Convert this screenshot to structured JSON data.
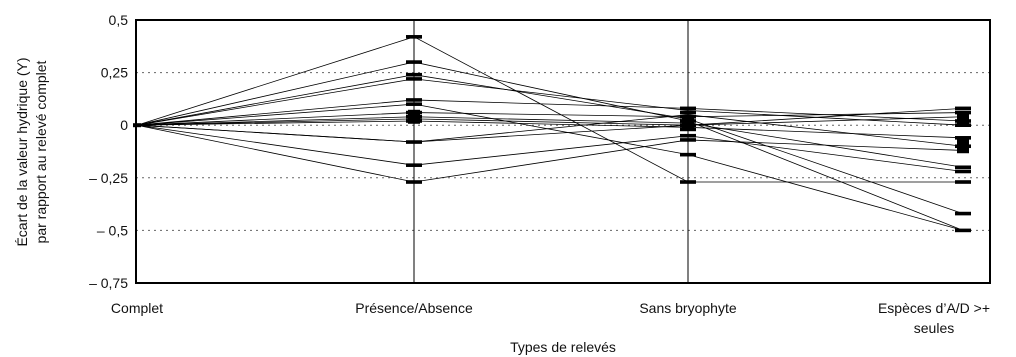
{
  "chart_data": {
    "type": "line",
    "xlabel": "Types de relevés",
    "ylabel_lines": [
      "Écart de la valeur hydrique (Y)",
      "par rapport au relevé complet"
    ],
    "categories": [
      {
        "lines": [
          "Complet"
        ]
      },
      {
        "lines": [
          "Présence/Absence"
        ]
      },
      {
        "lines": [
          "Sans bryophyte"
        ]
      },
      {
        "lines": [
          "Espèces d’A/D >+",
          "seules"
        ]
      }
    ],
    "ylim": [
      -0.75,
      0.5
    ],
    "y_ticks": [
      {
        "value": 0.5,
        "label": "0,5"
      },
      {
        "value": 0.25,
        "label": "0,25"
      },
      {
        "value": 0,
        "label": "0"
      },
      {
        "value": -0.25,
        "label": "– 0,25"
      },
      {
        "value": -0.5,
        "label": "– 0,5"
      },
      {
        "value": -0.75,
        "label": "– 0,75"
      }
    ],
    "grid": "horizontal dotted",
    "series": [
      {
        "values": [
          0,
          0.42,
          -0.27,
          -0.27
        ]
      },
      {
        "values": [
          0,
          0.3,
          0.02,
          -0.5
        ]
      },
      {
        "values": [
          0,
          0.24,
          0.03,
          -0.42
        ]
      },
      {
        "values": [
          0,
          0.22,
          0.07,
          0.0
        ]
      },
      {
        "values": [
          0,
          0.12,
          0.08,
          0.02
        ]
      },
      {
        "values": [
          0,
          0.1,
          -0.14,
          -0.5
        ]
      },
      {
        "values": [
          0,
          0.06,
          0.04,
          0.06
        ]
      },
      {
        "values": [
          0,
          0.04,
          0.01,
          -0.2
        ]
      },
      {
        "values": [
          0,
          0.02,
          -0.01,
          -0.06
        ]
      },
      {
        "values": [
          0,
          -0.08,
          0.05,
          -0.1
        ]
      },
      {
        "values": [
          0,
          -0.08,
          0.0,
          0.08
        ]
      },
      {
        "values": [
          0,
          -0.19,
          -0.05,
          -0.22
        ]
      },
      {
        "values": [
          0,
          -0.27,
          -0.07,
          -0.12
        ]
      },
      {
        "values": [
          0,
          0.03,
          0.0,
          0.04
        ]
      }
    ],
    "markers": [
      {
        "x": 1,
        "y": 0.42
      },
      {
        "x": 1,
        "y": 0.3
      },
      {
        "x": 1,
        "y": 0.24
      },
      {
        "x": 1,
        "y": 0.22
      },
      {
        "x": 1,
        "y": 0.12
      },
      {
        "x": 1,
        "y": 0.1
      },
      {
        "x": 1,
        "y": 0.06
      },
      {
        "x": 1,
        "y": 0.04
      },
      {
        "x": 1,
        "y": 0.02
      },
      {
        "x": 1,
        "y": -0.08
      },
      {
        "x": 1,
        "y": -0.19
      },
      {
        "x": 1,
        "y": -0.27
      },
      {
        "x": 2,
        "y": 0.08
      },
      {
        "x": 2,
        "y": 0.06
      },
      {
        "x": 2,
        "y": 0.04
      },
      {
        "x": 2,
        "y": 0.02
      },
      {
        "x": 2,
        "y": 0.0
      },
      {
        "x": 2,
        "y": -0.02
      },
      {
        "x": 2,
        "y": -0.05
      },
      {
        "x": 2,
        "y": -0.07
      },
      {
        "x": 2,
        "y": -0.14
      },
      {
        "x": 2,
        "y": -0.27
      },
      {
        "x": 3,
        "y": 0.08
      },
      {
        "x": 3,
        "y": 0.06
      },
      {
        "x": 3,
        "y": 0.02
      },
      {
        "x": 3,
        "y": 0.0
      },
      {
        "x": 3,
        "y": -0.06
      },
      {
        "x": 3,
        "y": -0.1
      },
      {
        "x": 3,
        "y": -0.2
      },
      {
        "x": 3,
        "y": -0.22
      },
      {
        "x": 3,
        "y": -0.27
      },
      {
        "x": 3,
        "y": -0.42
      },
      {
        "x": 3,
        "y": -0.5
      }
    ],
    "mean_boxes": [
      {
        "x": 1,
        "y": 0.04
      },
      {
        "x": 2,
        "y": 0.01
      },
      {
        "x": 3,
        "y": 0.03
      },
      {
        "x": 3,
        "y": -0.1
      }
    ],
    "vertical_ranges": [
      {
        "x": 1,
        "from": -0.75,
        "to": 0.5
      },
      {
        "x": 2,
        "from": -0.75,
        "to": 0.5
      }
    ]
  }
}
